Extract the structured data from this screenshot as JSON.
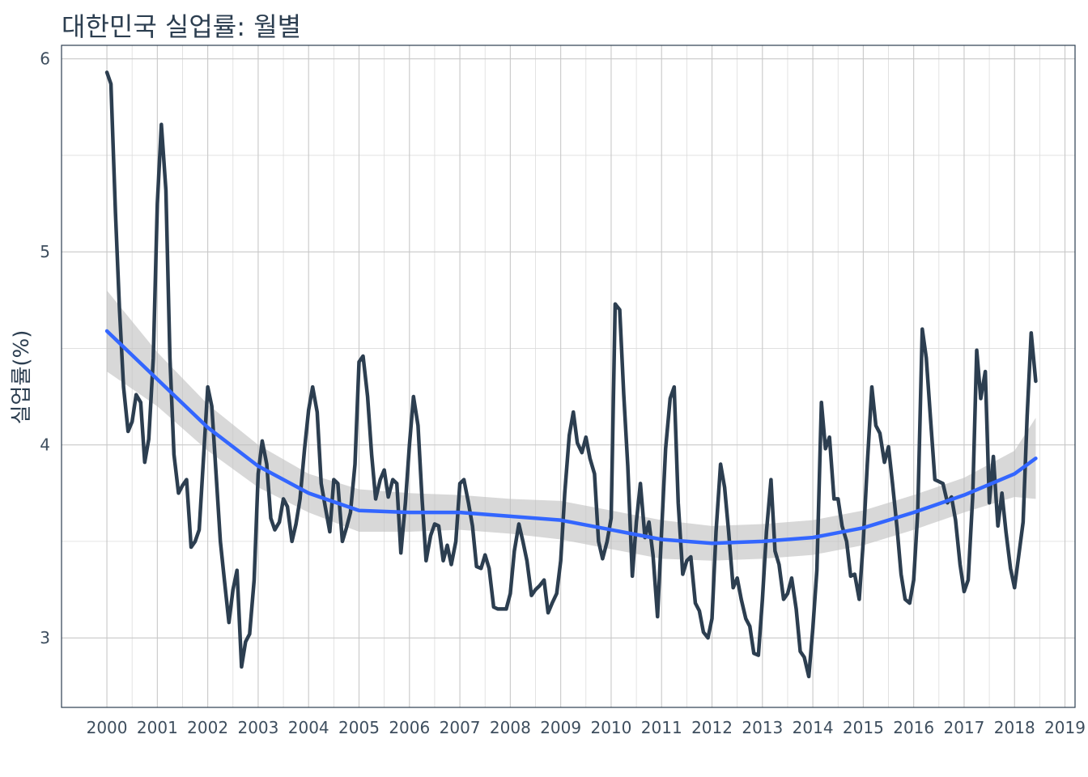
{
  "chart_data": {
    "type": "line",
    "title": "대한민국 실업률: 월별",
    "xlabel": "",
    "ylabel": "실업률(%)",
    "xlim": [
      1999.1,
      2019.2
    ],
    "ylim": [
      2.64,
      6.07
    ],
    "x_ticks": [
      2000,
      2001,
      2002,
      2003,
      2004,
      2005,
      2006,
      2007,
      2008,
      2009,
      2010,
      2011,
      2012,
      2013,
      2014,
      2015,
      2016,
      2017,
      2018,
      2019
    ],
    "y_ticks": [
      3,
      4,
      5,
      6
    ],
    "grid": true,
    "colors": {
      "series": "#2c3e50",
      "trend": "#3366ff",
      "band": "#bebebe"
    },
    "series": [
      {
        "style": "line",
        "points": [
          [
            2000.0,
            5.93
          ],
          [
            2000.08,
            5.87
          ],
          [
            2000.17,
            5.2
          ],
          [
            2000.25,
            4.7
          ],
          [
            2000.33,
            4.3
          ],
          [
            2000.42,
            4.07
          ],
          [
            2000.5,
            4.12
          ],
          [
            2000.58,
            4.26
          ],
          [
            2000.67,
            4.22
          ],
          [
            2000.75,
            3.91
          ],
          [
            2000.83,
            4.03
          ],
          [
            2000.92,
            4.45
          ],
          [
            2001.0,
            5.25
          ],
          [
            2001.08,
            5.66
          ],
          [
            2001.17,
            5.32
          ],
          [
            2001.25,
            4.45
          ],
          [
            2001.33,
            3.95
          ],
          [
            2001.42,
            3.75
          ],
          [
            2001.5,
            3.79
          ],
          [
            2001.58,
            3.82
          ],
          [
            2001.67,
            3.47
          ],
          [
            2001.75,
            3.5
          ],
          [
            2001.83,
            3.56
          ],
          [
            2001.92,
            3.95
          ],
          [
            2002.0,
            4.3
          ],
          [
            2002.08,
            4.2
          ],
          [
            2002.17,
            3.83
          ],
          [
            2002.25,
            3.5
          ],
          [
            2002.33,
            3.3
          ],
          [
            2002.42,
            3.08
          ],
          [
            2002.5,
            3.25
          ],
          [
            2002.58,
            3.35
          ],
          [
            2002.67,
            2.85
          ],
          [
            2002.75,
            2.98
          ],
          [
            2002.83,
            3.02
          ],
          [
            2002.92,
            3.3
          ],
          [
            2003.0,
            3.85
          ],
          [
            2003.08,
            4.02
          ],
          [
            2003.17,
            3.9
          ],
          [
            2003.25,
            3.62
          ],
          [
            2003.33,
            3.56
          ],
          [
            2003.42,
            3.6
          ],
          [
            2003.5,
            3.72
          ],
          [
            2003.58,
            3.68
          ],
          [
            2003.67,
            3.5
          ],
          [
            2003.75,
            3.59
          ],
          [
            2003.83,
            3.72
          ],
          [
            2003.92,
            3.98
          ],
          [
            2004.0,
            4.18
          ],
          [
            2004.08,
            4.3
          ],
          [
            2004.17,
            4.17
          ],
          [
            2004.25,
            3.8
          ],
          [
            2004.33,
            3.68
          ],
          [
            2004.42,
            3.55
          ],
          [
            2004.5,
            3.82
          ],
          [
            2004.58,
            3.8
          ],
          [
            2004.67,
            3.5
          ],
          [
            2004.75,
            3.57
          ],
          [
            2004.83,
            3.65
          ],
          [
            2004.92,
            3.9
          ],
          [
            2005.0,
            4.43
          ],
          [
            2005.08,
            4.46
          ],
          [
            2005.17,
            4.25
          ],
          [
            2005.25,
            3.95
          ],
          [
            2005.33,
            3.72
          ],
          [
            2005.42,
            3.82
          ],
          [
            2005.5,
            3.87
          ],
          [
            2005.58,
            3.73
          ],
          [
            2005.67,
            3.82
          ],
          [
            2005.75,
            3.8
          ],
          [
            2005.83,
            3.44
          ],
          [
            2005.92,
            3.7
          ],
          [
            2006.0,
            4.0
          ],
          [
            2006.08,
            4.25
          ],
          [
            2006.17,
            4.1
          ],
          [
            2006.25,
            3.72
          ],
          [
            2006.33,
            3.4
          ],
          [
            2006.42,
            3.53
          ],
          [
            2006.5,
            3.59
          ],
          [
            2006.58,
            3.58
          ],
          [
            2006.67,
            3.4
          ],
          [
            2006.75,
            3.48
          ],
          [
            2006.83,
            3.38
          ],
          [
            2006.92,
            3.5
          ],
          [
            2007.0,
            3.8
          ],
          [
            2007.08,
            3.82
          ],
          [
            2007.17,
            3.7
          ],
          [
            2007.25,
            3.58
          ],
          [
            2007.33,
            3.37
          ],
          [
            2007.42,
            3.36
          ],
          [
            2007.5,
            3.43
          ],
          [
            2007.58,
            3.36
          ],
          [
            2007.67,
            3.16
          ],
          [
            2007.75,
            3.15
          ],
          [
            2007.83,
            3.15
          ],
          [
            2007.92,
            3.15
          ],
          [
            2008.0,
            3.23
          ],
          [
            2008.08,
            3.45
          ],
          [
            2008.17,
            3.59
          ],
          [
            2008.25,
            3.5
          ],
          [
            2008.33,
            3.4
          ],
          [
            2008.42,
            3.22
          ],
          [
            2008.5,
            3.25
          ],
          [
            2008.58,
            3.27
          ],
          [
            2008.67,
            3.3
          ],
          [
            2008.75,
            3.13
          ],
          [
            2008.83,
            3.18
          ],
          [
            2008.92,
            3.23
          ],
          [
            2009.0,
            3.4
          ],
          [
            2009.08,
            3.75
          ],
          [
            2009.17,
            4.05
          ],
          [
            2009.25,
            4.17
          ],
          [
            2009.33,
            4.01
          ],
          [
            2009.42,
            3.96
          ],
          [
            2009.5,
            4.04
          ],
          [
            2009.58,
            3.93
          ],
          [
            2009.67,
            3.85
          ],
          [
            2009.75,
            3.5
          ],
          [
            2009.83,
            3.41
          ],
          [
            2009.92,
            3.5
          ],
          [
            2010.0,
            3.62
          ],
          [
            2010.08,
            4.73
          ],
          [
            2010.17,
            4.7
          ],
          [
            2010.25,
            4.26
          ],
          [
            2010.33,
            3.89
          ],
          [
            2010.42,
            3.32
          ],
          [
            2010.5,
            3.6
          ],
          [
            2010.58,
            3.8
          ],
          [
            2010.67,
            3.52
          ],
          [
            2010.75,
            3.6
          ],
          [
            2010.83,
            3.43
          ],
          [
            2010.92,
            3.11
          ],
          [
            2011.0,
            3.55
          ],
          [
            2011.08,
            3.98
          ],
          [
            2011.17,
            4.24
          ],
          [
            2011.25,
            4.3
          ],
          [
            2011.33,
            3.7
          ],
          [
            2011.42,
            3.33
          ],
          [
            2011.5,
            3.4
          ],
          [
            2011.58,
            3.42
          ],
          [
            2011.67,
            3.18
          ],
          [
            2011.75,
            3.14
          ],
          [
            2011.83,
            3.03
          ],
          [
            2011.92,
            3.0
          ],
          [
            2012.0,
            3.1
          ],
          [
            2012.08,
            3.55
          ],
          [
            2012.17,
            3.9
          ],
          [
            2012.25,
            3.78
          ],
          [
            2012.33,
            3.55
          ],
          [
            2012.42,
            3.26
          ],
          [
            2012.5,
            3.31
          ],
          [
            2012.58,
            3.2
          ],
          [
            2012.67,
            3.1
          ],
          [
            2012.75,
            3.06
          ],
          [
            2012.83,
            2.92
          ],
          [
            2012.92,
            2.91
          ],
          [
            2013.0,
            3.2
          ],
          [
            2013.08,
            3.55
          ],
          [
            2013.17,
            3.82
          ],
          [
            2013.25,
            3.45
          ],
          [
            2013.33,
            3.38
          ],
          [
            2013.42,
            3.2
          ],
          [
            2013.5,
            3.23
          ],
          [
            2013.58,
            3.31
          ],
          [
            2013.67,
            3.15
          ],
          [
            2013.75,
            2.93
          ],
          [
            2013.83,
            2.9
          ],
          [
            2013.92,
            2.8
          ],
          [
            2014.0,
            3.05
          ],
          [
            2014.08,
            3.35
          ],
          [
            2014.17,
            4.22
          ],
          [
            2014.25,
            3.98
          ],
          [
            2014.33,
            4.04
          ],
          [
            2014.42,
            3.72
          ],
          [
            2014.5,
            3.72
          ],
          [
            2014.58,
            3.58
          ],
          [
            2014.67,
            3.5
          ],
          [
            2014.75,
            3.32
          ],
          [
            2014.83,
            3.33
          ],
          [
            2014.92,
            3.2
          ],
          [
            2015.0,
            3.5
          ],
          [
            2015.08,
            3.9
          ],
          [
            2015.17,
            4.3
          ],
          [
            2015.25,
            4.1
          ],
          [
            2015.33,
            4.06
          ],
          [
            2015.42,
            3.91
          ],
          [
            2015.5,
            3.99
          ],
          [
            2015.58,
            3.8
          ],
          [
            2015.67,
            3.57
          ],
          [
            2015.75,
            3.33
          ],
          [
            2015.83,
            3.2
          ],
          [
            2015.92,
            3.18
          ],
          [
            2016.0,
            3.3
          ],
          [
            2016.08,
            3.65
          ],
          [
            2016.17,
            4.6
          ],
          [
            2016.25,
            4.45
          ],
          [
            2016.33,
            4.15
          ],
          [
            2016.42,
            3.82
          ],
          [
            2016.5,
            3.81
          ],
          [
            2016.58,
            3.8
          ],
          [
            2016.67,
            3.7
          ],
          [
            2016.75,
            3.73
          ],
          [
            2016.83,
            3.61
          ],
          [
            2016.92,
            3.38
          ],
          [
            2017.0,
            3.24
          ],
          [
            2017.08,
            3.3
          ],
          [
            2017.17,
            3.73
          ],
          [
            2017.25,
            4.49
          ],
          [
            2017.33,
            4.24
          ],
          [
            2017.42,
            4.38
          ],
          [
            2017.5,
            3.7
          ],
          [
            2017.58,
            3.94
          ],
          [
            2017.67,
            3.58
          ],
          [
            2017.75,
            3.75
          ],
          [
            2017.83,
            3.55
          ],
          [
            2017.92,
            3.36
          ],
          [
            2018.0,
            3.26
          ],
          [
            2018.08,
            3.42
          ],
          [
            2018.17,
            3.6
          ],
          [
            2018.25,
            4.15
          ],
          [
            2018.33,
            4.58
          ],
          [
            2018.42,
            4.33
          ]
        ]
      },
      {
        "style": "smooth",
        "x": [
          2000.0,
          2001.0,
          2002.0,
          2003.0,
          2004.0,
          2005.0,
          2006.0,
          2007.0,
          2008.0,
          2009.0,
          2010.0,
          2011.0,
          2012.0,
          2013.0,
          2014.0,
          2015.0,
          2016.0,
          2017.0,
          2018.0,
          2018.42
        ],
        "y": [
          4.59,
          4.34,
          4.09,
          3.89,
          3.75,
          3.66,
          3.65,
          3.65,
          3.63,
          3.61,
          3.56,
          3.51,
          3.49,
          3.5,
          3.52,
          3.57,
          3.65,
          3.74,
          3.85,
          3.93
        ],
        "lower": [
          4.38,
          4.2,
          3.97,
          3.78,
          3.65,
          3.55,
          3.55,
          3.56,
          3.54,
          3.51,
          3.46,
          3.41,
          3.4,
          3.41,
          3.43,
          3.48,
          3.56,
          3.65,
          3.73,
          3.72
        ],
        "upper": [
          4.8,
          4.48,
          4.21,
          4.0,
          3.85,
          3.77,
          3.75,
          3.74,
          3.72,
          3.71,
          3.66,
          3.61,
          3.58,
          3.59,
          3.61,
          3.66,
          3.74,
          3.83,
          3.97,
          4.14
        ]
      }
    ]
  }
}
